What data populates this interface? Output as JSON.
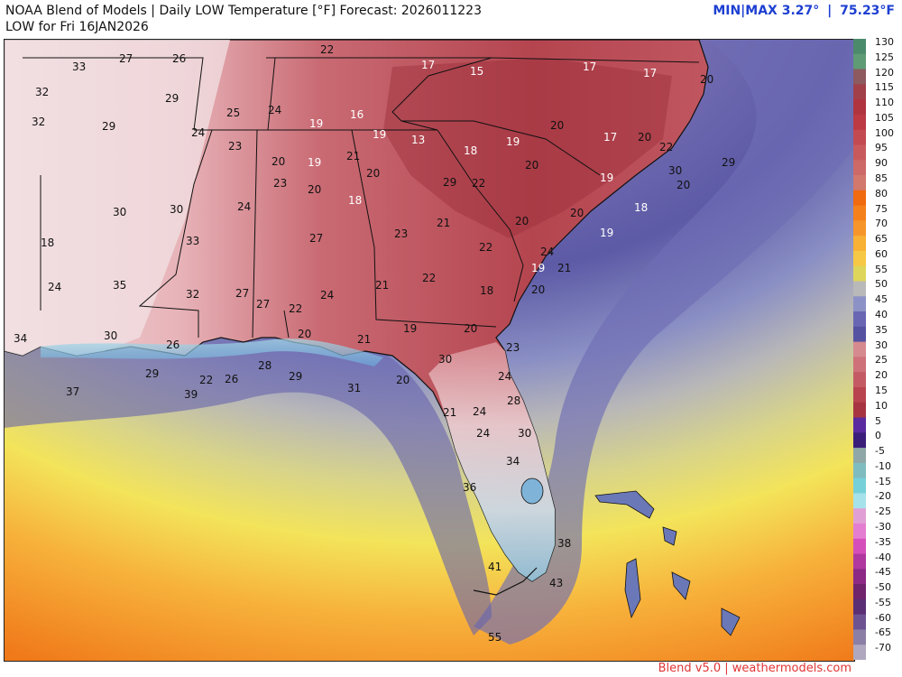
{
  "header": {
    "title": "NOAA Blend of Models | Daily LOW Temperature [°F] Forecast: 2026011223",
    "subtitle": "LOW for Fri 16JAN2026",
    "minmax_label": "MIN|MAX",
    "min_value": "3.27°",
    "separator": "|",
    "max_value": "75.23°F"
  },
  "footer": {
    "credit": "Blend v5.0 | weathermodels.com"
  },
  "legend": {
    "labels": [
      "130",
      "125",
      "120",
      "115",
      "110",
      "105",
      "100",
      "95",
      "90",
      "85",
      "80",
      "75",
      "70",
      "65",
      "60",
      "55",
      "50",
      "45",
      "40",
      "35",
      "30",
      "25",
      "20",
      "15",
      "10",
      "5",
      "0",
      "-5",
      "-10",
      "-15",
      "-20",
      "-25",
      "-30",
      "-35",
      "-40",
      "-45",
      "-50",
      "-55",
      "-60",
      "-65",
      "-70"
    ]
  },
  "map": {
    "region": "Southeastern United States",
    "station_values": [
      "22",
      "27",
      "26",
      "33",
      "32",
      "29",
      "25",
      "24",
      "17",
      "15",
      "17",
      "17",
      "20",
      "32",
      "29",
      "24",
      "23",
      "19",
      "16",
      "19",
      "13",
      "18",
      "19",
      "20",
      "17",
      "20",
      "22",
      "20",
      "19",
      "21",
      "20",
      "29",
      "30",
      "29",
      "30",
      "30",
      "24",
      "23",
      "20",
      "18",
      "21",
      "20",
      "22",
      "20",
      "19",
      "20",
      "18",
      "20",
      "18",
      "33",
      "27",
      "23",
      "22",
      "19",
      "24",
      "19",
      "21",
      "24",
      "35",
      "32",
      "27",
      "24",
      "21",
      "22",
      "18",
      "20",
      "34",
      "30",
      "22",
      "21",
      "19",
      "20",
      "26",
      "20",
      "30",
      "23",
      "27",
      "28",
      "29",
      "26",
      "29",
      "31",
      "22",
      "37",
      "39",
      "20",
      "24",
      "21",
      "24",
      "28",
      "24",
      "30",
      "34",
      "36",
      "38",
      "41",
      "43",
      "55"
    ]
  }
}
